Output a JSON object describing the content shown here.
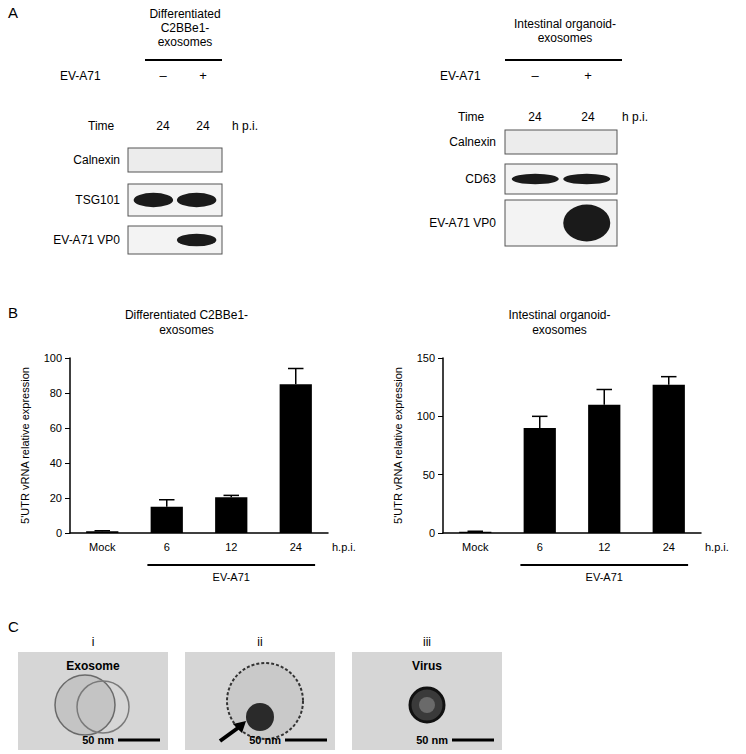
{
  "panel_labels": {
    "A": "A",
    "B": "B",
    "C": "C"
  },
  "blots": [
    {
      "title_lines": [
        "Differentiated",
        "C2BBe1-",
        "exosomes"
      ],
      "treatment": "EV-A71",
      "lanes": [
        "–",
        "+"
      ],
      "time_label": "Time",
      "times": [
        24,
        24
      ],
      "time_unit": "h p.i.",
      "rows": [
        {
          "name": "Calnexin",
          "bands": [
            false,
            false
          ]
        },
        {
          "name": "TSG101",
          "bands": [
            true,
            true
          ]
        },
        {
          "name": "EV-A71 VP0",
          "bands": [
            false,
            true
          ]
        }
      ]
    },
    {
      "title_lines": [
        "Intestinal organoid-",
        "exosomes"
      ],
      "treatment": "EV-A71",
      "lanes": [
        "–",
        "+"
      ],
      "time_label": "Time",
      "times": [
        24,
        24
      ],
      "time_unit": "h p.i.",
      "rows": [
        {
          "name": "Calnexin",
          "bands": [
            false,
            false
          ]
        },
        {
          "name": "CD63",
          "bands": [
            true,
            true
          ]
        },
        {
          "name": "EV-A71 VP0",
          "bands": [
            false,
            true
          ]
        }
      ]
    }
  ],
  "chart_data": [
    {
      "type": "bar",
      "title": "Differentiated C2BBe1-\nexosomes",
      "y_label": "5'UTR vRNA relative expression",
      "categories": [
        "Mock",
        "6",
        "12",
        "24"
      ],
      "values": [
        1,
        15,
        20.5,
        85
      ],
      "errors": [
        0.3,
        4,
        1,
        9
      ],
      "color": "#000000",
      "ylim": [
        0,
        100
      ],
      "yticks": [
        0,
        20,
        40,
        60,
        80,
        100
      ],
      "annotations": [
        {
          "text": "h.p.i."
        },
        {
          "text": "EV-A71",
          "span": [
            "6",
            "24"
          ]
        }
      ]
    },
    {
      "type": "bar",
      "title": "Intestinal organoid-\nexosomes",
      "y_label": "5'UTR vRNA relative expression",
      "categories": [
        "Mock",
        "6",
        "12",
        "24"
      ],
      "values": [
        1,
        90,
        110,
        127
      ],
      "errors": [
        0.5,
        10,
        13,
        7
      ],
      "color": "#000000",
      "ylim": [
        0,
        150
      ],
      "yticks": [
        0,
        50,
        100,
        150
      ],
      "annotations": [
        {
          "text": "h.p.i."
        },
        {
          "text": "EV-A71",
          "span": [
            "6",
            "24"
          ]
        }
      ]
    }
  ],
  "em_images": [
    {
      "label": "i",
      "caption": "Exosome",
      "scale": "50 nm",
      "kind": "exosome"
    },
    {
      "label": "ii",
      "caption": null,
      "scale": "50 nm",
      "kind": "exosome_virus"
    },
    {
      "label": "iii",
      "caption": "Virus",
      "scale": "50 nm",
      "kind": "virus"
    }
  ]
}
